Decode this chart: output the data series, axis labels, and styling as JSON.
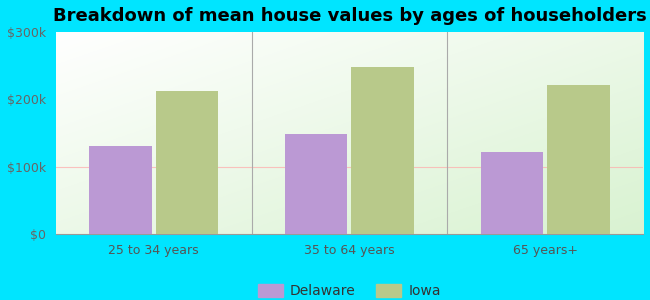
{
  "title": "Breakdown of mean house values by ages of householders",
  "categories": [
    "25 to 34 years",
    "35 to 64 years",
    "65 years+"
  ],
  "delaware_values": [
    130000,
    148000,
    122000
  ],
  "iowa_values": [
    213000,
    248000,
    222000
  ],
  "delaware_color": "#bb99d4",
  "iowa_color": "#b8c98a",
  "ylim": [
    0,
    300000
  ],
  "yticks": [
    0,
    100000,
    200000,
    300000
  ],
  "ytick_labels": [
    "$0",
    "$100k",
    "$200k",
    "$300k"
  ],
  "legend_labels": [
    "Delaware",
    "Iowa"
  ],
  "outer_bg": "#00e5ff",
  "bar_width": 0.32,
  "title_fontsize": 13,
  "axis_label_fontsize": 9,
  "legend_fontsize": 10
}
